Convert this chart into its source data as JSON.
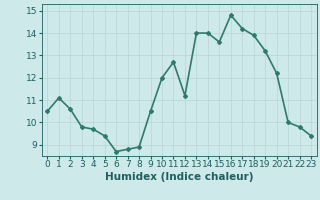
{
  "x": [
    0,
    1,
    2,
    3,
    4,
    5,
    6,
    7,
    8,
    9,
    10,
    11,
    12,
    13,
    14,
    15,
    16,
    17,
    18,
    19,
    20,
    21,
    22,
    23
  ],
  "y": [
    10.5,
    11.1,
    10.6,
    9.8,
    9.7,
    9.4,
    8.7,
    8.8,
    8.9,
    10.5,
    12.0,
    12.7,
    11.2,
    14.0,
    14.0,
    13.6,
    14.8,
    14.2,
    13.9,
    13.2,
    12.2,
    10.0,
    9.8,
    9.4
  ],
  "line_color": "#2d7a6e",
  "marker": "D",
  "marker_size": 2.0,
  "bg_color": "#cee9e9",
  "grid_color": "#b8d4d4",
  "xlabel": "Humidex (Indice chaleur)",
  "ylim": [
    8.5,
    15.3
  ],
  "yticks": [
    9,
    10,
    11,
    12,
    13,
    14,
    15
  ],
  "xticks": [
    0,
    1,
    2,
    3,
    4,
    5,
    6,
    7,
    8,
    9,
    10,
    11,
    12,
    13,
    14,
    15,
    16,
    17,
    18,
    19,
    20,
    21,
    22,
    23
  ],
  "xtick_labels": [
    "0",
    "1",
    "2",
    "3",
    "4",
    "5",
    "6",
    "7",
    "8",
    "9",
    "10",
    "11",
    "12",
    "13",
    "14",
    "15",
    "16",
    "17",
    "18",
    "19",
    "20",
    "21",
    "22",
    "23"
  ],
  "tick_color": "#1e5f5f",
  "label_fontsize": 7.5,
  "tick_fontsize": 6.5,
  "linewidth": 1.2
}
